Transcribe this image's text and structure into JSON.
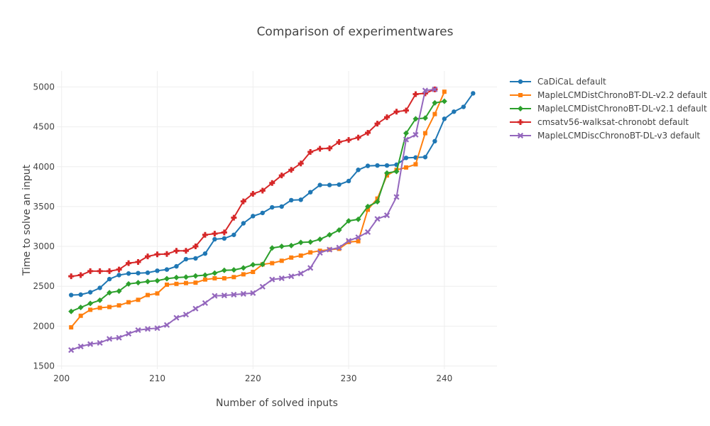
{
  "chart_data": {
    "type": "line",
    "title": "Comparison of experimentwares",
    "xlabel": "Number of solved inputs",
    "ylabel": "Time to solve an input",
    "xlim": [
      199.5,
      245.5
    ],
    "ylim": [
      1460,
      5200
    ],
    "xticks": [
      200,
      210,
      220,
      230,
      240
    ],
    "yticks": [
      1500,
      2000,
      2500,
      3000,
      3500,
      4000,
      4500,
      5000
    ],
    "grid": true,
    "legend_position": "top-right",
    "series": [
      {
        "name": "CaDiCaL default",
        "color": "#1f77b4",
        "marker": "circle",
        "x": [
          201,
          202,
          203,
          204,
          205,
          206,
          207,
          208,
          209,
          210,
          211,
          212,
          213,
          214,
          215,
          216,
          217,
          218,
          219,
          220,
          221,
          222,
          223,
          224,
          225,
          226,
          227,
          228,
          229,
          230,
          231,
          232,
          233,
          234,
          235,
          236,
          237,
          238,
          239,
          240,
          241,
          242,
          243
        ],
        "y": [
          2390,
          2395,
          2425,
          2480,
          2590,
          2640,
          2660,
          2665,
          2670,
          2695,
          2710,
          2750,
          2840,
          2850,
          2910,
          3090,
          3100,
          3145,
          3290,
          3380,
          3420,
          3490,
          3500,
          3580,
          3585,
          3680,
          3770,
          3770,
          3775,
          3820,
          3960,
          4010,
          4015,
          4015,
          4025,
          4110,
          4115,
          4120,
          4320,
          4600,
          4690,
          4750,
          4920
        ]
      },
      {
        "name": "MapleLCMDistChronoBT-DL-v2.2 default",
        "color": "#ff7f0e",
        "marker": "square",
        "x": [
          201,
          202,
          203,
          204,
          205,
          206,
          207,
          208,
          209,
          210,
          211,
          212,
          213,
          214,
          215,
          216,
          217,
          218,
          219,
          220,
          221,
          222,
          223,
          224,
          225,
          226,
          227,
          228,
          229,
          230,
          231,
          232,
          233,
          234,
          235,
          236,
          237,
          238,
          239,
          240
        ],
        "y": [
          1985,
          2130,
          2205,
          2230,
          2240,
          2260,
          2300,
          2330,
          2390,
          2410,
          2520,
          2530,
          2540,
          2545,
          2585,
          2600,
          2600,
          2615,
          2650,
          2680,
          2775,
          2790,
          2820,
          2860,
          2885,
          2925,
          2945,
          2960,
          2970,
          3055,
          3065,
          3460,
          3600,
          3890,
          3960,
          3990,
          4030,
          4420,
          4660,
          4940
        ]
      },
      {
        "name": "MapleLCMDistChronoBT-DL-v2.1 default",
        "color": "#2ca02c",
        "marker": "diamond",
        "x": [
          201,
          202,
          203,
          204,
          205,
          206,
          207,
          208,
          209,
          210,
          211,
          212,
          213,
          214,
          215,
          216,
          217,
          218,
          219,
          220,
          221,
          222,
          223,
          224,
          225,
          226,
          227,
          228,
          229,
          230,
          231,
          232,
          233,
          234,
          235,
          236,
          237,
          238,
          239,
          240
        ],
        "y": [
          2185,
          2235,
          2285,
          2325,
          2420,
          2440,
          2530,
          2545,
          2560,
          2570,
          2595,
          2610,
          2615,
          2630,
          2640,
          2665,
          2700,
          2705,
          2730,
          2770,
          2775,
          2980,
          3000,
          3010,
          3050,
          3055,
          3090,
          3145,
          3205,
          3320,
          3340,
          3500,
          3560,
          3920,
          3940,
          4420,
          4600,
          4610,
          4800,
          4820
        ]
      },
      {
        "name": "cmsatv56-walksat-chronobt default",
        "color": "#d62728",
        "marker": "cross",
        "x": [
          201,
          202,
          203,
          204,
          205,
          206,
          207,
          208,
          209,
          210,
          211,
          212,
          213,
          214,
          215,
          216,
          217,
          218,
          219,
          220,
          221,
          222,
          223,
          224,
          225,
          226,
          227,
          228,
          229,
          230,
          231,
          232,
          233,
          234,
          235,
          236,
          237,
          238,
          239
        ],
        "y": [
          2625,
          2640,
          2690,
          2690,
          2690,
          2710,
          2790,
          2805,
          2875,
          2900,
          2905,
          2945,
          2945,
          3000,
          3145,
          3160,
          3175,
          3360,
          3565,
          3660,
          3700,
          3795,
          3890,
          3960,
          4040,
          4185,
          4225,
          4230,
          4310,
          4335,
          4365,
          4425,
          4540,
          4620,
          4690,
          4705,
          4910,
          4920,
          4970
        ]
      },
      {
        "name": "MapleLCMDiscChronoBT-DL-v3 default",
        "color": "#9467bd",
        "marker": "x",
        "x": [
          201,
          202,
          203,
          204,
          205,
          206,
          207,
          208,
          209,
          210,
          211,
          212,
          213,
          214,
          215,
          216,
          217,
          218,
          219,
          220,
          221,
          222,
          223,
          224,
          225,
          226,
          227,
          228,
          229,
          230,
          231,
          232,
          233,
          234,
          235,
          236,
          237,
          238,
          239
        ],
        "y": [
          1700,
          1745,
          1775,
          1790,
          1840,
          1855,
          1905,
          1950,
          1965,
          1975,
          2015,
          2105,
          2145,
          2220,
          2290,
          2380,
          2385,
          2395,
          2405,
          2415,
          2495,
          2585,
          2600,
          2625,
          2660,
          2730,
          2920,
          2960,
          2985,
          3070,
          3115,
          3180,
          3345,
          3390,
          3620,
          4340,
          4400,
          4955,
          4970
        ]
      }
    ]
  }
}
